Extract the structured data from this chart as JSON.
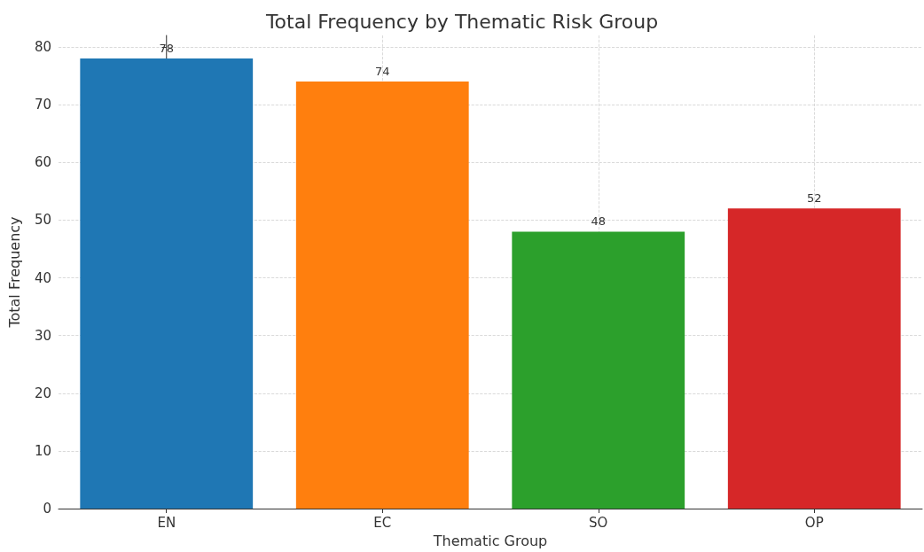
{
  "chart_data": {
    "type": "bar",
    "title": "Total Frequency by Thematic Risk Group",
    "xlabel": "Thematic Group",
    "ylabel": "Total Frequency",
    "categories": [
      "EN",
      "EC",
      "SO",
      "OP"
    ],
    "values": [
      78,
      74,
      48,
      52
    ],
    "colors": [
      "#1f77b4",
      "#ff7f0e",
      "#2ca02c",
      "#d62728"
    ],
    "ylim": [
      0,
      82
    ],
    "yticks": [
      0,
      10,
      20,
      30,
      40,
      50,
      60,
      70,
      80
    ],
    "grid": true,
    "data_labels": true
  }
}
